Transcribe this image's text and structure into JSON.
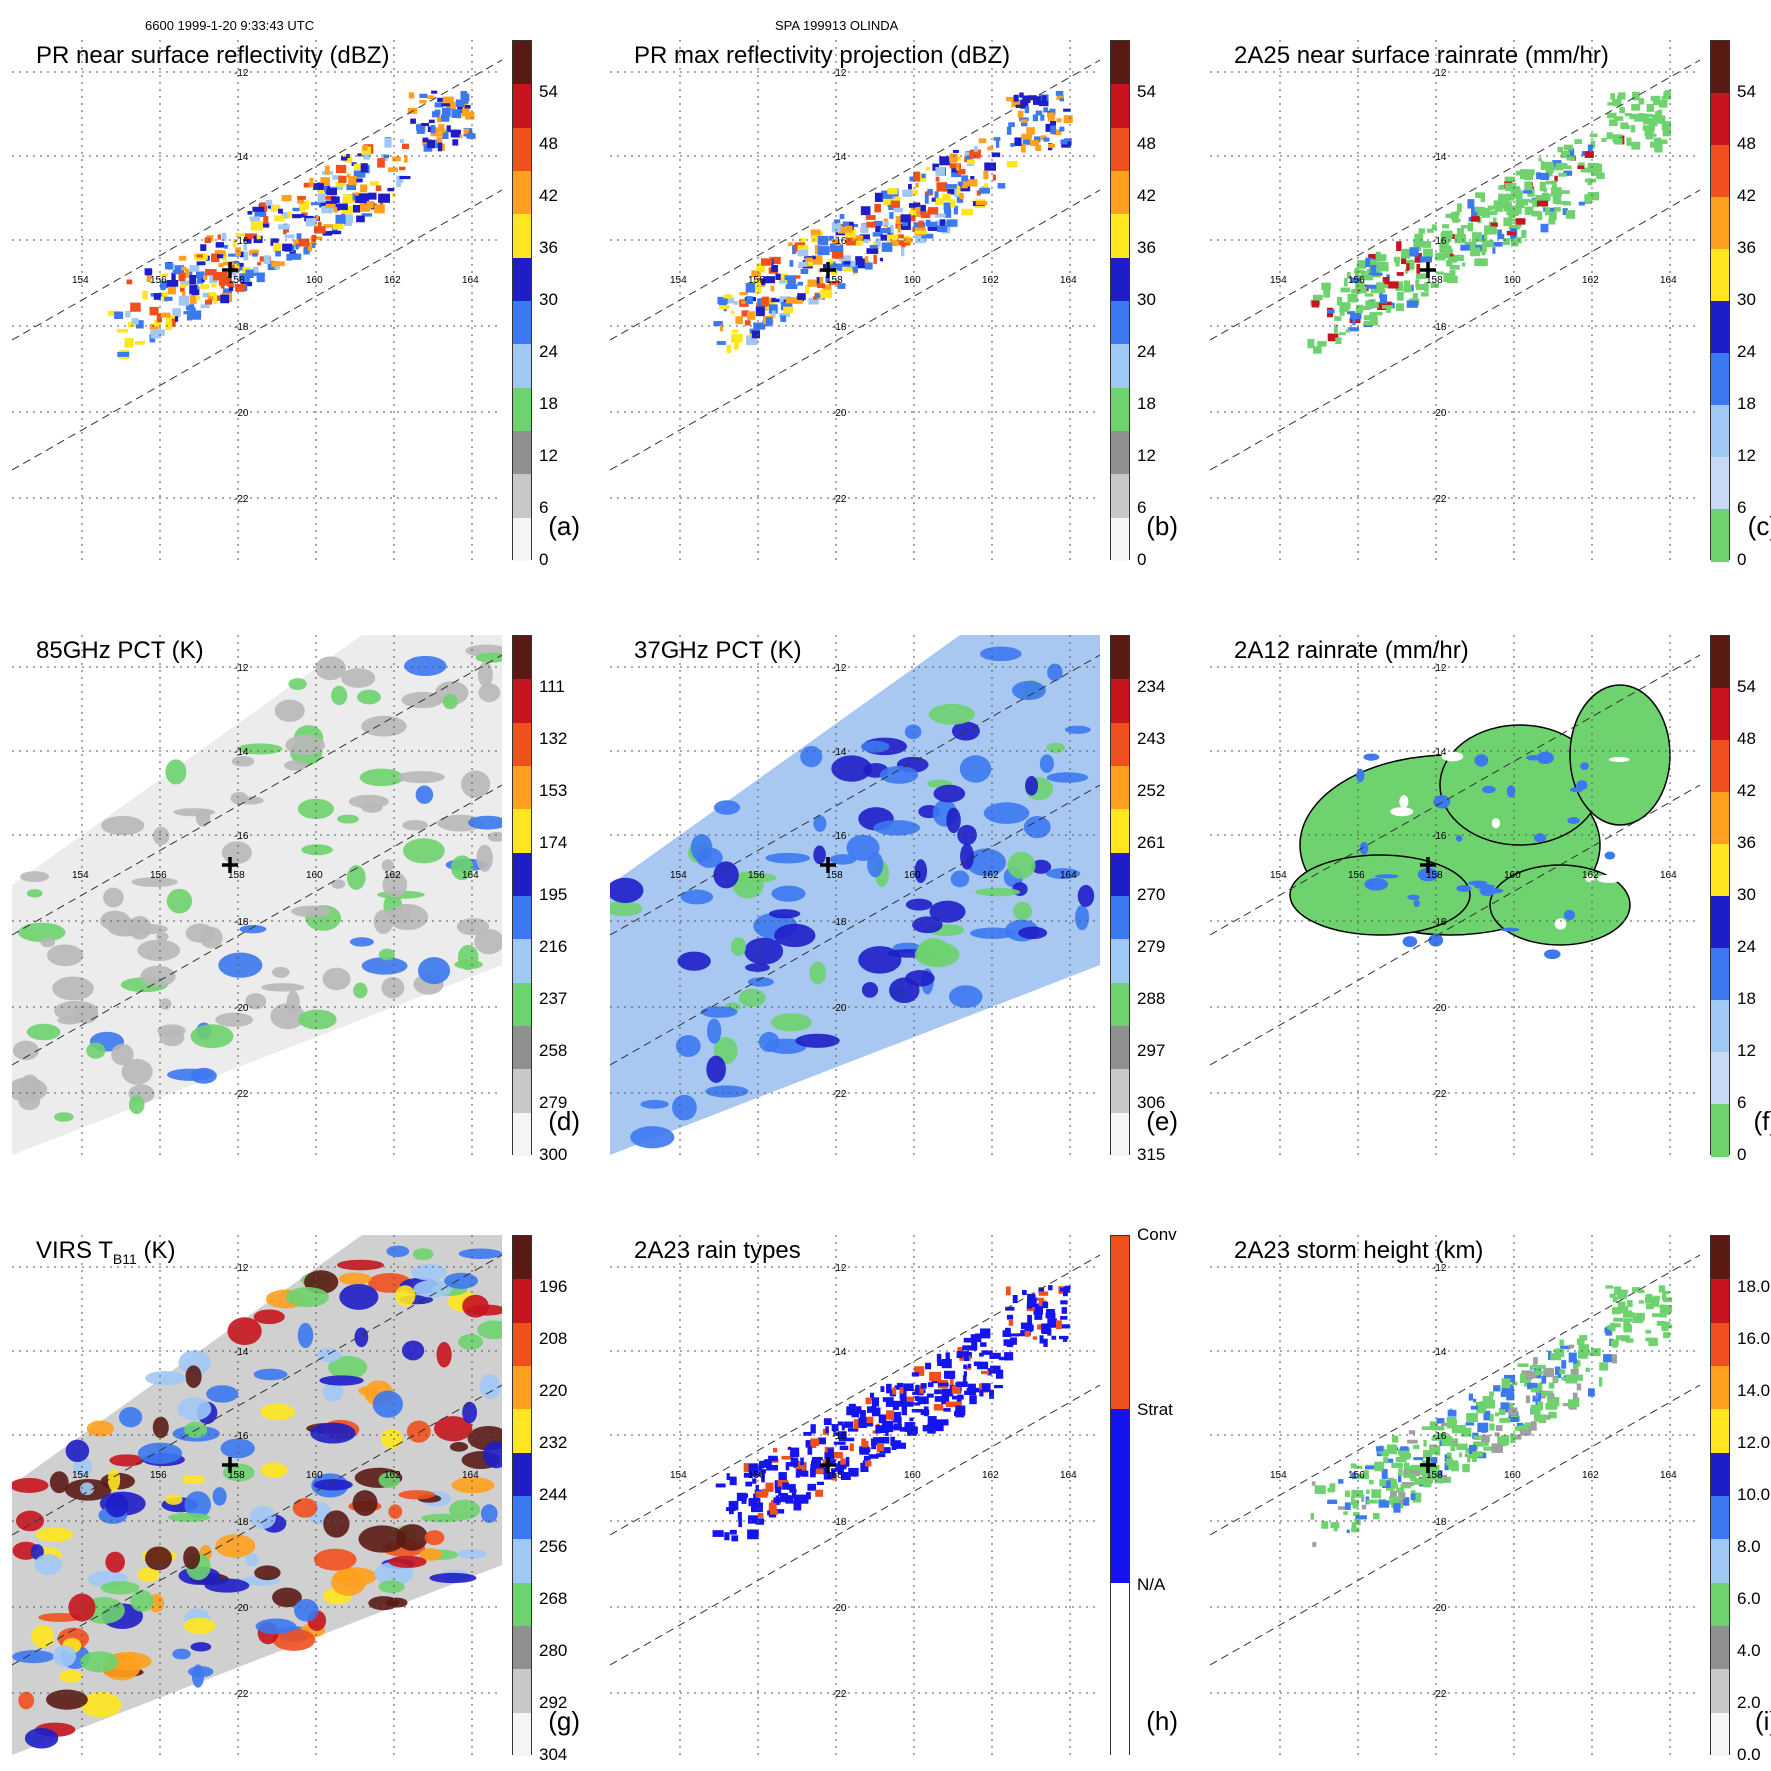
{
  "header": {
    "left": "6600 1999-1-20 9:33:43 UTC",
    "center": "SPA 199913 OLINDA"
  },
  "grid": {
    "lat_labels": [
      "-12",
      "-14",
      "-16",
      "-18",
      "-20",
      "-22"
    ],
    "lon_labels": [
      "154",
      "156",
      "158",
      "160",
      "162",
      "164"
    ]
  },
  "panels": [
    {
      "id": "a",
      "title": "PR near surface reflectivity (dBZ)",
      "label": "(a)",
      "ticks": [
        "54",
        "48",
        "42",
        "36",
        "30",
        "24",
        "18",
        "12",
        "6",
        "0"
      ],
      "colors": [
        "#5a1a14",
        "#c8141e",
        "#f0501e",
        "#ffa01e",
        "#ffe61e",
        "#1e1ec8",
        "#3c78f0",
        "#a0c8f5",
        "#6ed26e",
        "#909090",
        "#c8c8c8",
        "#f5f5f5"
      ]
    },
    {
      "id": "b",
      "title": "PR max reflectivity projection (dBZ)",
      "label": "(b)",
      "ticks": [
        "54",
        "48",
        "42",
        "36",
        "30",
        "24",
        "18",
        "12",
        "6",
        "0"
      ],
      "colors": [
        "#5a1a14",
        "#c8141e",
        "#f0501e",
        "#ffa01e",
        "#ffe61e",
        "#1e1ec8",
        "#3c78f0",
        "#a0c8f5",
        "#6ed26e",
        "#909090",
        "#c8c8c8",
        "#f5f5f5"
      ]
    },
    {
      "id": "c",
      "title": "2A25 near surface rainrate (mm/hr)",
      "label": "(c)",
      "ticks": [
        "54",
        "48",
        "42",
        "36",
        "30",
        "24",
        "18",
        "12",
        "6",
        "0"
      ],
      "colors": [
        "#5a1a14",
        "#c8141e",
        "#f0501e",
        "#ffa01e",
        "#ffe61e",
        "#1e1ec8",
        "#3c78f0",
        "#a0c8f5",
        "#c8d8f5",
        "#6ed26e"
      ]
    },
    {
      "id": "d",
      "title": "85GHz PCT (K)",
      "label": "(d)",
      "ticks": [
        "111",
        "132",
        "153",
        "174",
        "195",
        "216",
        "237",
        "258",
        "279",
        "300"
      ],
      "colors": [
        "#5a1a14",
        "#c8141e",
        "#f0501e",
        "#ffa01e",
        "#ffe61e",
        "#1e1ec8",
        "#3c78f0",
        "#a0c8f5",
        "#6ed26e",
        "#909090",
        "#c8c8c8",
        "#f5f5f5"
      ]
    },
    {
      "id": "e",
      "title": "37GHz PCT (K)",
      "label": "(e)",
      "ticks": [
        "234",
        "243",
        "252",
        "261",
        "270",
        "279",
        "288",
        "297",
        "306",
        "315"
      ],
      "colors": [
        "#5a1a14",
        "#c8141e",
        "#f0501e",
        "#ffa01e",
        "#ffe61e",
        "#1e1ec8",
        "#3c78f0",
        "#a0c8f5",
        "#6ed26e",
        "#909090",
        "#c8c8c8",
        "#f5f5f5"
      ]
    },
    {
      "id": "f",
      "title": "2A12 rainrate (mm/hr)",
      "label": "(f)",
      "ticks": [
        "54",
        "48",
        "42",
        "36",
        "30",
        "24",
        "18",
        "12",
        "6",
        "0"
      ],
      "colors": [
        "#5a1a14",
        "#c8141e",
        "#f0501e",
        "#ffa01e",
        "#ffe61e",
        "#1e1ec8",
        "#3c78f0",
        "#a0c8f5",
        "#c8d8f5",
        "#6ed26e"
      ]
    },
    {
      "id": "g",
      "title_main": "VIRS T",
      "title_sub": "B11",
      "title_tail": " (K)",
      "label": "(g)",
      "ticks": [
        "196",
        "208",
        "220",
        "232",
        "244",
        "256",
        "268",
        "280",
        "292",
        "304"
      ],
      "colors": [
        "#5a1a14",
        "#c8141e",
        "#f0501e",
        "#ffa01e",
        "#ffe61e",
        "#1e1ec8",
        "#3c78f0",
        "#a0c8f5",
        "#6ed26e",
        "#909090",
        "#c8c8c8",
        "#f5f5f5"
      ]
    },
    {
      "id": "h",
      "title": "2A23 rain types",
      "label": "(h)",
      "ticks": [
        "Conv",
        "Strat",
        "N/A"
      ],
      "colors": [
        "#f0501e",
        "#1414f0",
        "#ffffff"
      ]
    },
    {
      "id": "i",
      "title": "2A23 storm height (km)",
      "label": "(i)",
      "ticks": [
        "18.0",
        "16.0",
        "14.0",
        "12.0",
        "10.0",
        "8.0",
        "6.0",
        "4.0",
        "2.0",
        "0.0"
      ],
      "colors": [
        "#5a1a14",
        "#c8141e",
        "#f0501e",
        "#ffa01e",
        "#ffe61e",
        "#1e1ec8",
        "#3c78f0",
        "#a0c8f5",
        "#6ed26e",
        "#909090",
        "#c8c8c8",
        "#f5f5f5"
      ]
    }
  ]
}
